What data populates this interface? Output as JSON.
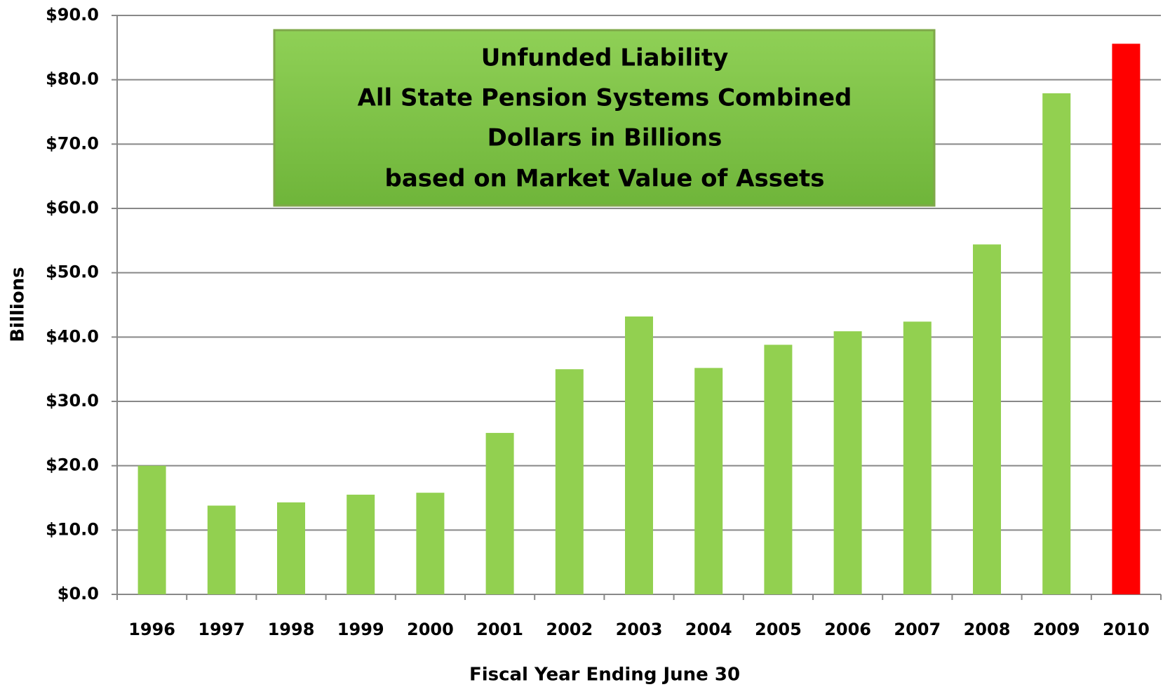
{
  "chart_data": {
    "type": "bar",
    "title_lines": [
      "Unfunded Liability",
      "All State Pension Systems Combined",
      "Dollars in Billions",
      "based on Market Value of Assets"
    ],
    "x_label": "Fiscal Year Ending June 30",
    "y_label": "Billions",
    "categories": [
      "1996",
      "1997",
      "1998",
      "1999",
      "2000",
      "2001",
      "2002",
      "2003",
      "2004",
      "2005",
      "2006",
      "2007",
      "2008",
      "2009",
      "2010"
    ],
    "values": [
      20.0,
      13.8,
      14.3,
      15.5,
      15.8,
      25.1,
      35.0,
      43.2,
      35.2,
      38.8,
      40.9,
      42.4,
      54.4,
      77.9,
      85.6
    ],
    "colors": [
      "#92d050",
      "#92d050",
      "#92d050",
      "#92d050",
      "#92d050",
      "#92d050",
      "#92d050",
      "#92d050",
      "#92d050",
      "#92d050",
      "#92d050",
      "#92d050",
      "#92d050",
      "#92d050",
      "#ff0000"
    ],
    "ylim": [
      0,
      90
    ],
    "yticks": [
      {
        "value": 0,
        "label": "$0.0"
      },
      {
        "value": 10,
        "label": "$10.0"
      },
      {
        "value": 20,
        "label": "$20.0"
      },
      {
        "value": 30,
        "label": "$30.0"
      },
      {
        "value": 40,
        "label": "$40.0"
      },
      {
        "value": 50,
        "label": "$50.0"
      },
      {
        "value": 60,
        "label": "$60.0"
      },
      {
        "value": 70,
        "label": "$70.0"
      },
      {
        "value": 80,
        "label": "$80.0"
      },
      {
        "value": 90,
        "label": "$90.0"
      }
    ],
    "grid": true
  }
}
